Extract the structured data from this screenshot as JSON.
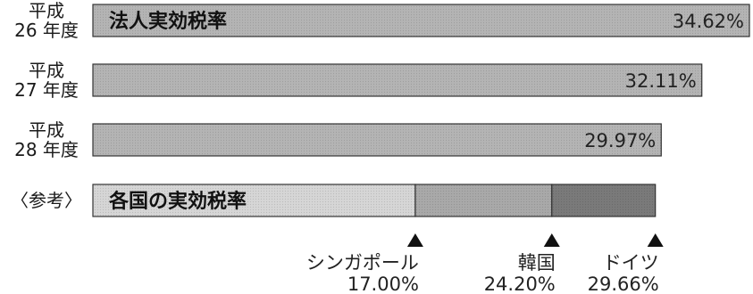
{
  "chart_data": {
    "type": "bar",
    "orientation": "horizontal",
    "categories": [
      "平成\n26 年度",
      "平成\n27 年度",
      "平成\n28 年度"
    ],
    "series": [
      {
        "name": "法人実効税率",
        "values": [
          34.62,
          32.11,
          29.97
        ]
      }
    ],
    "value_labels": [
      "34.62%",
      "32.11%",
      "29.97%"
    ],
    "reference": {
      "row_label": "〈参考〉",
      "bar_label": "各国の実効税率",
      "countries": [
        {
          "name": "シンガポール",
          "value": 17.0,
          "label": "17.00%"
        },
        {
          "name": "韓国",
          "value": 24.2,
          "label": "24.20%"
        },
        {
          "name": "ドイツ",
          "value": 29.66,
          "label": "29.66%"
        }
      ]
    },
    "unit": "%",
    "grid": false,
    "colors": {
      "bar_fill": "#b4b4b4",
      "bar_stroke": "#333333",
      "ref_segment_1": "#d6d6d6",
      "ref_segment_2": "#a9a9a9",
      "ref_segment_3": "#7a7a7a",
      "marker": "#111111"
    }
  }
}
